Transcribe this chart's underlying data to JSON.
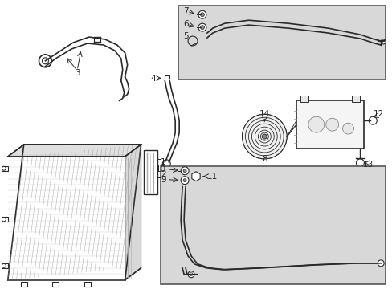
{
  "bg_color": "#ffffff",
  "line_color": "#2a2a2a",
  "gray_fill": "#d8d8d8",
  "light_gray": "#eeeeee",
  "figsize": [
    4.89,
    3.6
  ],
  "dpi": 100
}
